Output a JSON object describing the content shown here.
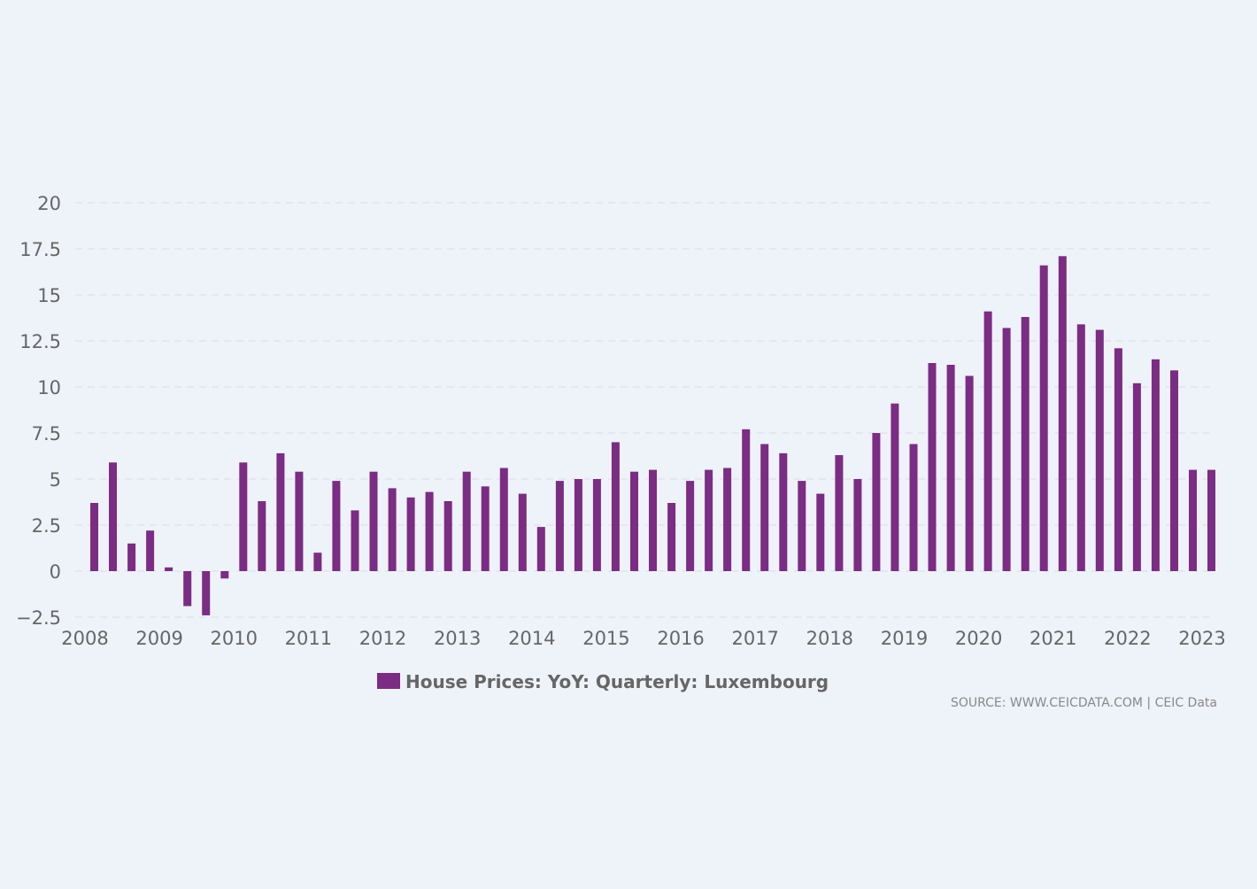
{
  "chart_data": {
    "type": "bar",
    "title": "",
    "xlabel": "",
    "ylabel": "",
    "ylim": [
      -2.5,
      20
    ],
    "yticks": [
      "20",
      "17.5",
      "15",
      "12.5",
      "10",
      "7.5",
      "5",
      "2.5",
      "0",
      "−2.5"
    ],
    "ytick_values": [
      20,
      17.5,
      15,
      12.5,
      10,
      7.5,
      5,
      2.5,
      0,
      -2.5
    ],
    "xlim": [
      2008.0,
      2023.0
    ],
    "xticks": [
      "2008",
      "2009",
      "2010",
      "2011",
      "2012",
      "2013",
      "2014",
      "2015",
      "2016",
      "2017",
      "2018",
      "2019",
      "2020",
      "2021",
      "2022",
      "2023"
    ],
    "xtick_values": [
      2008,
      2009,
      2010,
      2011,
      2012,
      2013,
      2014,
      2015,
      2016,
      2017,
      2018,
      2019,
      2020,
      2021,
      2022,
      2023
    ],
    "grid": true,
    "legend_position": "bottom-center",
    "series": [
      {
        "name": "House Prices: YoY: Quarterly: Luxembourg",
        "color": "#7b2c83",
        "x": [
          "2008-Q1",
          "2008-Q2",
          "2008-Q3",
          "2008-Q4",
          "2009-Q1",
          "2009-Q2",
          "2009-Q3",
          "2009-Q4",
          "2010-Q1",
          "2010-Q2",
          "2010-Q3",
          "2010-Q4",
          "2011-Q1",
          "2011-Q2",
          "2011-Q3",
          "2011-Q4",
          "2012-Q1",
          "2012-Q2",
          "2012-Q3",
          "2012-Q4",
          "2013-Q1",
          "2013-Q2",
          "2013-Q3",
          "2013-Q4",
          "2014-Q1",
          "2014-Q2",
          "2014-Q3",
          "2014-Q4",
          "2015-Q1",
          "2015-Q2",
          "2015-Q3",
          "2015-Q4",
          "2016-Q1",
          "2016-Q2",
          "2016-Q3",
          "2016-Q4",
          "2017-Q1",
          "2017-Q2",
          "2017-Q3",
          "2017-Q4",
          "2018-Q1",
          "2018-Q2",
          "2018-Q3",
          "2018-Q4",
          "2019-Q1",
          "2019-Q2",
          "2019-Q3",
          "2019-Q4",
          "2020-Q1",
          "2020-Q2",
          "2020-Q3",
          "2020-Q4",
          "2021-Q1",
          "2021-Q2",
          "2021-Q3",
          "2021-Q4",
          "2022-Q1",
          "2022-Q2",
          "2022-Q3",
          "2022-Q4",
          "2023-Q1"
        ],
        "values": [
          3.7,
          5.9,
          1.5,
          2.2,
          0.2,
          -1.9,
          -2.4,
          -0.4,
          5.9,
          3.8,
          6.4,
          5.4,
          1.0,
          4.9,
          3.3,
          5.4,
          4.5,
          4.0,
          4.3,
          3.8,
          5.4,
          4.6,
          5.6,
          4.2,
          2.4,
          4.9,
          5.0,
          5.0,
          7.0,
          5.4,
          5.5,
          3.7,
          4.9,
          5.5,
          5.6,
          7.7,
          6.9,
          6.4,
          4.9,
          4.2,
          6.3,
          5.0,
          7.5,
          9.1,
          6.9,
          11.3,
          11.2,
          10.6,
          14.1,
          13.2,
          13.8,
          16.6,
          17.1,
          13.4,
          13.1,
          12.1,
          10.2,
          11.5,
          10.9,
          5.5,
          5.5
        ]
      }
    ],
    "source_text": "SOURCE: WWW.CEICDATA.COM | CEIC Data"
  }
}
